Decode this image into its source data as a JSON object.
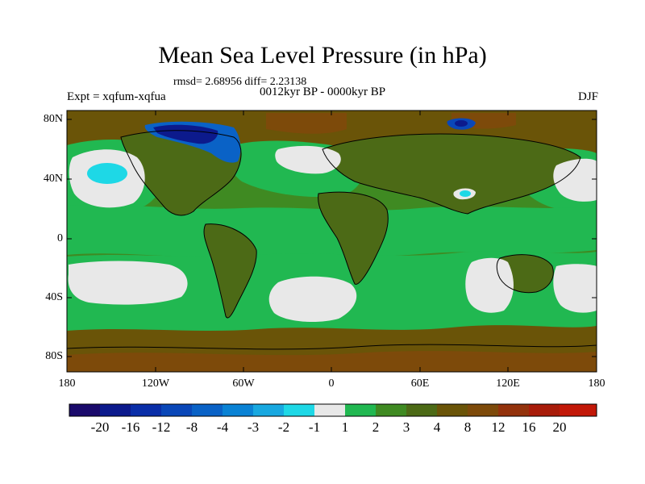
{
  "title": "Mean Sea Level Pressure (in hPa)",
  "stats": "rmsd= 2.68956 diff= 2.23138",
  "experiment": "Expt = xqfum-xqfua",
  "period": "0012kyr BP - 0000kyr BP",
  "season": "DJF",
  "lat_ticks": [
    "80N",
    "40N",
    "0",
    "40S",
    "80S"
  ],
  "lon_ticks": [
    "180",
    "120W",
    "60W",
    "0",
    "60E",
    "120E",
    "180"
  ],
  "colorbar": {
    "labels": [
      "-20",
      "-16",
      "-12",
      "-8",
      "-4",
      "-3",
      "-2",
      "-1",
      "1",
      "2",
      "3",
      "4",
      "8",
      "12",
      "16",
      "20"
    ],
    "colors": [
      "#1a0a6b",
      "#0c1a8c",
      "#0a2ea8",
      "#0a47b8",
      "#0a62c6",
      "#0a82d4",
      "#18a8e0",
      "#1ed8e6",
      "#e8e8e8",
      "#21b851",
      "#3f8a22",
      "#4c6a16",
      "#6a5408",
      "#7d4a0a",
      "#93320c",
      "#a81c0a",
      "#c21808"
    ]
  },
  "map_colors": {
    "ocean_low": "#21b851",
    "mid": "#3f8a22",
    "land": "#4c6a16",
    "high": "#6a5408",
    "very_high": "#7d4a0a",
    "near_zero": "#e8e8e8",
    "cyan": "#1ed8e6",
    "blue": "#0a47b8",
    "dark_blue": "#0c1a8c"
  }
}
